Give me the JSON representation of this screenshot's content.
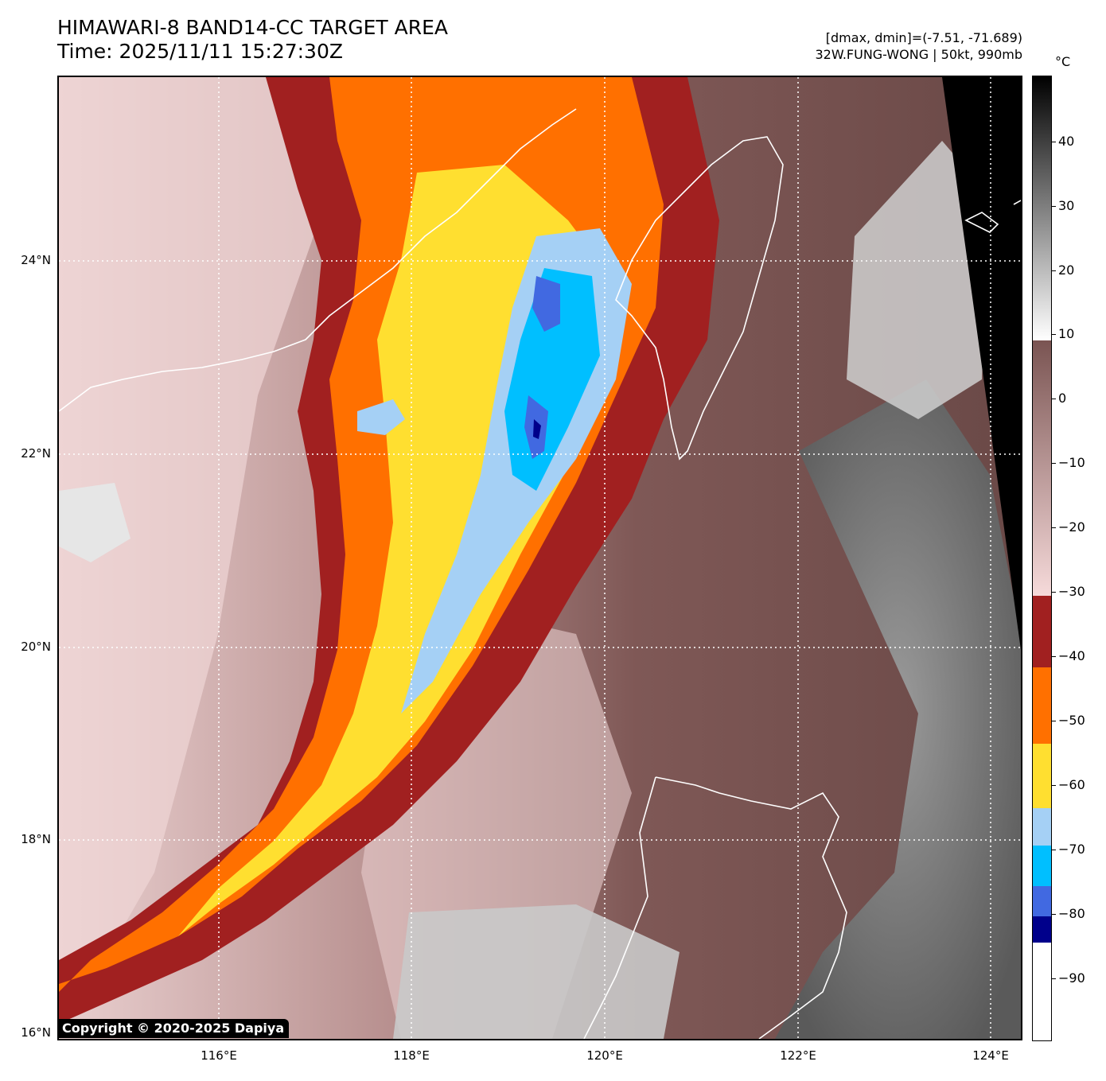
{
  "title_line1": "HIMAWARI-8 BAND14-CC TARGET AREA",
  "title_line2": "Time: 2025/11/11 15:27:30Z",
  "meta_line1": "[dmax, dmin]=(-7.51, -71.689)",
  "meta_line2": "32W.FUNG-WONG | 50kt, 990mb",
  "copyright": "Copyright © 2020-2025 Dapiya",
  "colorbar": {
    "unit": "°C",
    "ticks": [
      "40",
      "30",
      "20",
      "10",
      "0",
      "−10",
      "−20",
      "−30",
      "−40",
      "−50",
      "−60",
      "−70",
      "−80",
      "−90"
    ],
    "colors": {
      "warm_black": "#000000",
      "gray_mid": "#808080",
      "gray_light": "#e8e8e8",
      "brown": "#7a5452",
      "pink": "#f6dada",
      "dark_red": "#a12020",
      "orange": "#ff7000",
      "yellow": "#ffdf30",
      "light_blue": "#a5d0f5",
      "cyan": "#00bfff",
      "blue": "#4169e1",
      "navy": "#00008b",
      "white": "#ffffff"
    }
  },
  "axes": {
    "lat_labels": [
      "24°N",
      "22°N",
      "20°N",
      "18°N",
      "16°N"
    ],
    "lon_labels": [
      "116°E",
      "118°E",
      "120°E",
      "122°E",
      "124°E"
    ]
  }
}
